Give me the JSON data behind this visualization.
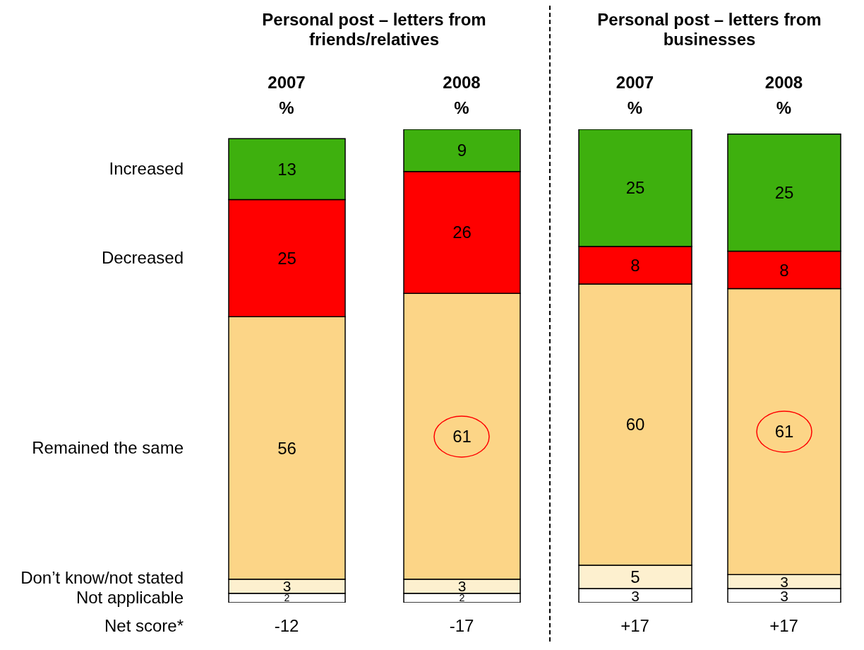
{
  "chart_data": [
    {
      "type": "bar",
      "title": "Personal post – letters from friends/relatives",
      "categories": [
        "2007 %",
        "2008 %"
      ],
      "stacked": true,
      "data_labels": true,
      "series": [
        {
          "name": "Not applicable",
          "color": "#ffffff",
          "values": [
            2,
            2
          ]
        },
        {
          "name": "Don’t know/not stated",
          "color": "#fdf0cf",
          "values": [
            3,
            3
          ]
        },
        {
          "name": "Remained the same",
          "color": "#fcd587",
          "values": [
            56,
            61
          ]
        },
        {
          "name": "Decreased",
          "color": "#ff0000",
          "values": [
            25,
            26
          ]
        },
        {
          "name": "Increased",
          "color": "#3eb00e",
          "values": [
            13,
            9
          ]
        }
      ],
      "annotations": [
        "Net score*",
        "-12",
        "-17"
      ]
    },
    {
      "type": "bar",
      "title": "Personal post – letters from businesses",
      "categories": [
        "2007 %",
        "2008 %"
      ],
      "stacked": true,
      "data_labels": true,
      "series": [
        {
          "color": "#ffffff",
          "values": [
            3,
            3
          ]
        },
        {
          "color": "#fdf0cf",
          "values": [
            5,
            3
          ]
        },
        {
          "color": "#fcd587",
          "values": [
            60,
            61
          ]
        },
        {
          "color": "#ff0000",
          "values": [
            8,
            8
          ]
        },
        {
          "color": "#3eb00e",
          "values": [
            25,
            25
          ]
        }
      ],
      "annotations": [
        "+17",
        "+17"
      ]
    }
  ]
}
